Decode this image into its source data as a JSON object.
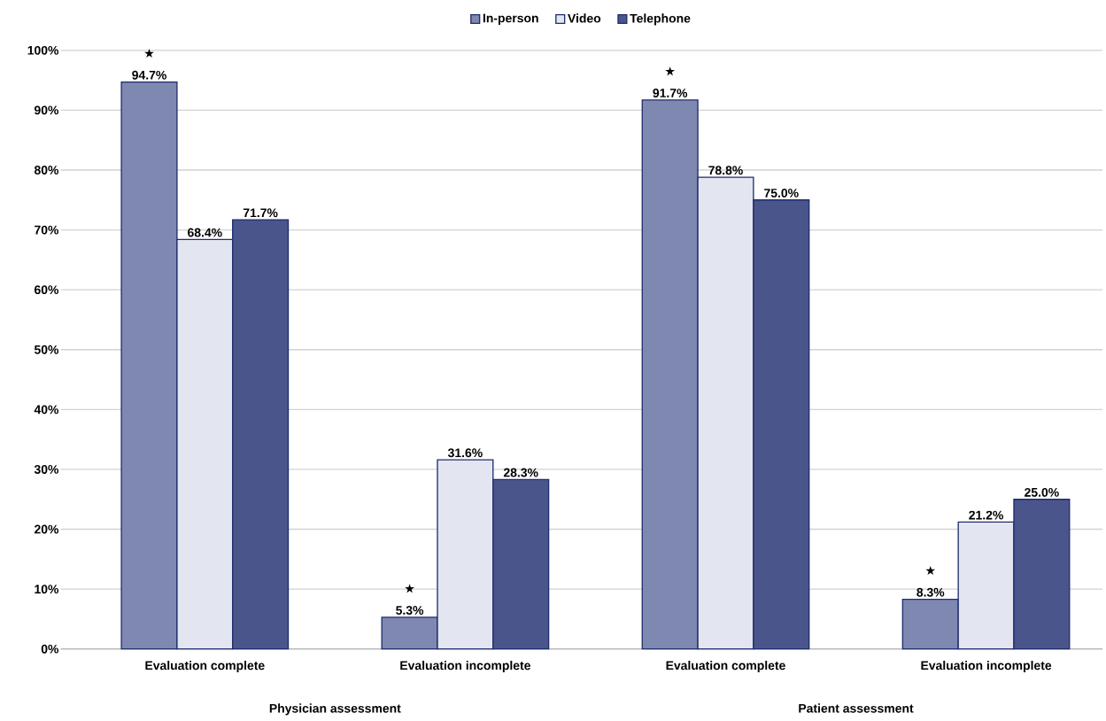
{
  "chart_data": {
    "type": "bar",
    "categories": [
      "Evaluation complete",
      "Evaluation incomplete",
      "Evaluation complete",
      "Evaluation incomplete"
    ],
    "series": [
      {
        "name": "In-person",
        "color": "#7f88b0",
        "values": [
          94.7,
          5.3,
          91.7,
          8.3
        ],
        "value_labels": [
          "94.7%",
          "5.3%",
          "91.7%",
          "8.3%"
        ]
      },
      {
        "name": "Video",
        "color": "#e3e6f0",
        "values": [
          68.4,
          31.6,
          78.8,
          21.2
        ],
        "value_labels": [
          "68.4%",
          "31.6%",
          "78.8%",
          "21.2%"
        ]
      },
      {
        "name": "Telephone",
        "color": "#4a558c",
        "values": [
          71.7,
          28.3,
          75.0,
          25.0
        ],
        "value_labels": [
          "71.7%",
          "28.3%",
          "75.0%",
          "25.0%"
        ]
      }
    ],
    "ylim": [
      0,
      100
    ],
    "yticks": [
      {
        "value": 0,
        "label": "0%"
      },
      {
        "value": 10,
        "label": "10%"
      },
      {
        "value": 20,
        "label": "20%"
      },
      {
        "value": 30,
        "label": "30%"
      },
      {
        "value": 40,
        "label": "40%"
      },
      {
        "value": 50,
        "label": "50%"
      },
      {
        "value": 60,
        "label": "60%"
      },
      {
        "value": 70,
        "label": "70%"
      },
      {
        "value": 80,
        "label": "80%"
      },
      {
        "value": 90,
        "label": "90%"
      },
      {
        "value": 100,
        "label": "100%"
      }
    ],
    "grid": "y",
    "legend": "top",
    "annotations": [
      "★",
      "★",
      "★",
      "★",
      "Physician assessment",
      "Patient assessment"
    ]
  }
}
